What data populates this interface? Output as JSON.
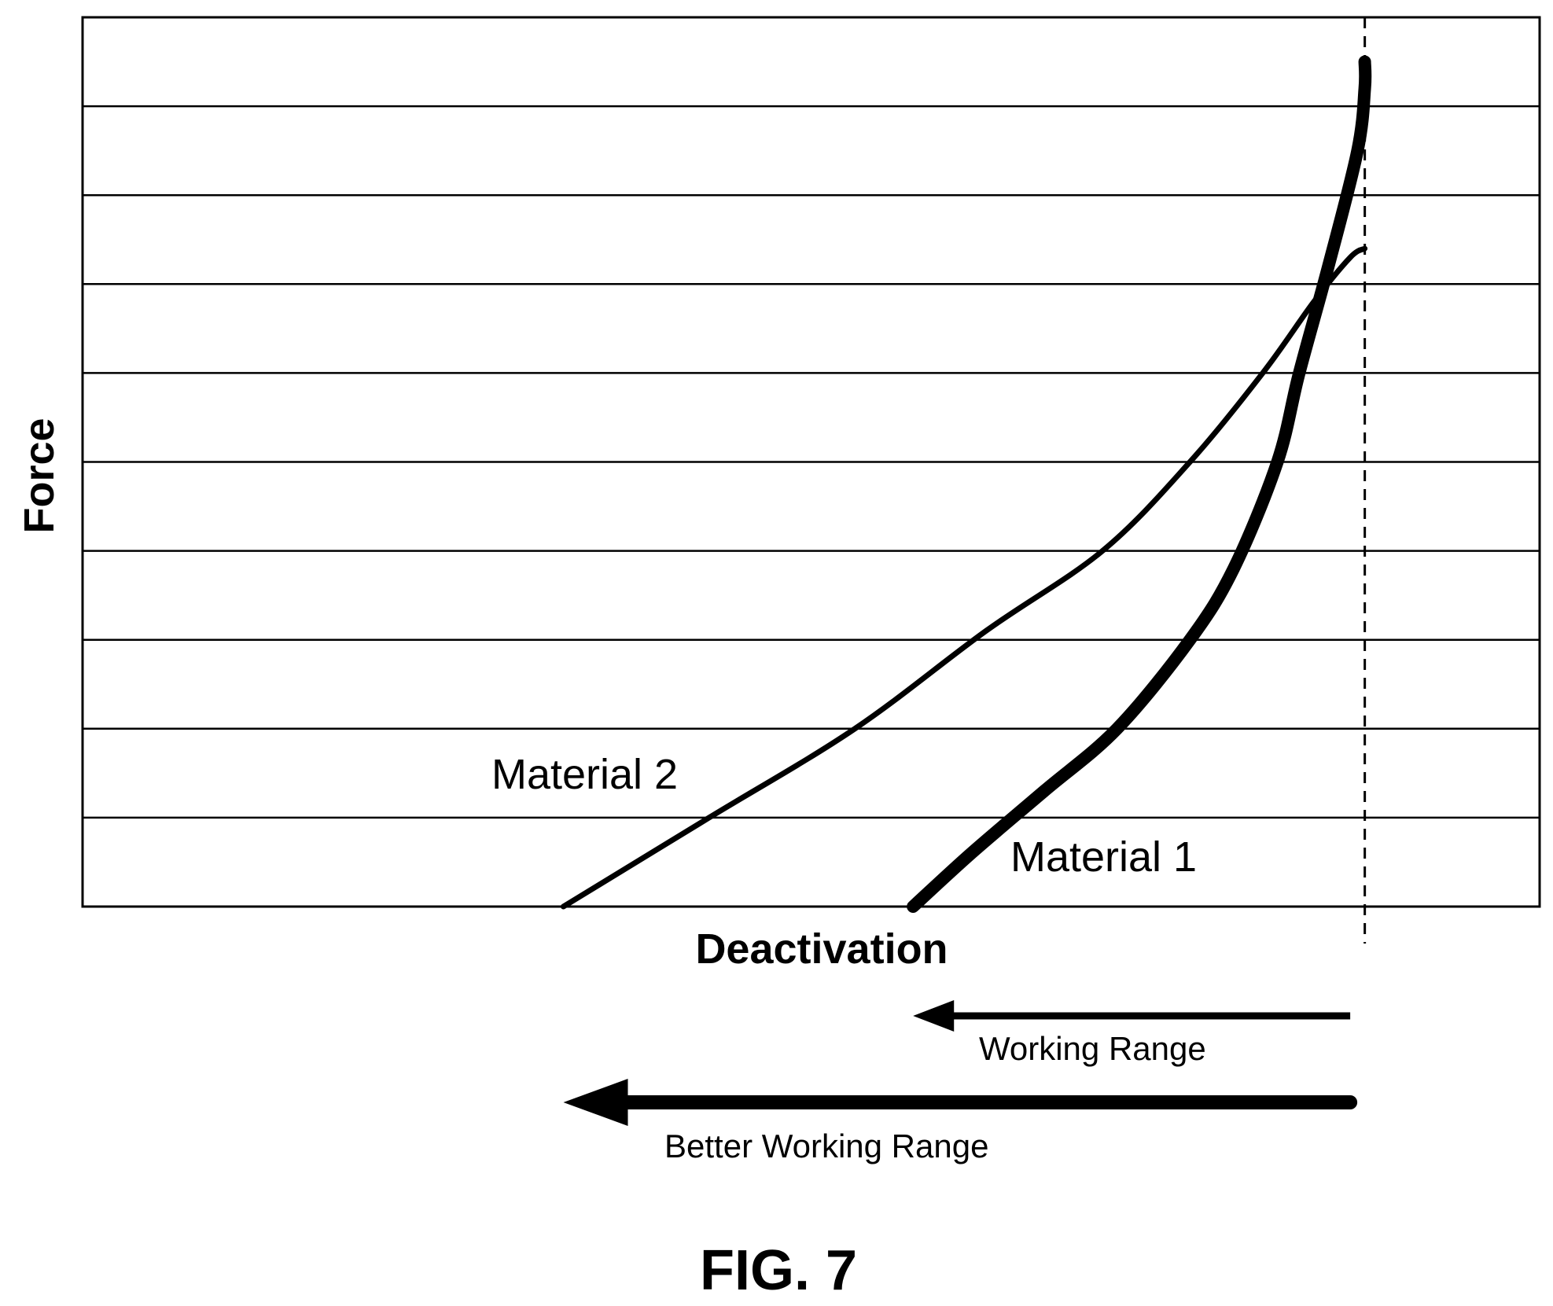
{
  "chart_data": {
    "type": "line",
    "title": "",
    "xlabel": "Deactivation",
    "ylabel": "Force",
    "xlim": [
      0,
      100
    ],
    "ylim": [
      0,
      100
    ],
    "grid": true,
    "grid_y_lines": 10,
    "series": [
      {
        "name": "Material 1",
        "weight": "thick",
        "points": [
          [
            57,
            0
          ],
          [
            61,
            6
          ],
          [
            66,
            13
          ],
          [
            71,
            20
          ],
          [
            76,
            30
          ],
          [
            79,
            38
          ],
          [
            82,
            50
          ],
          [
            83.5,
            60
          ],
          [
            85.5,
            72
          ],
          [
            87.5,
            85
          ],
          [
            88,
            92
          ],
          [
            88,
            95
          ]
        ]
      },
      {
        "name": "Material 2",
        "weight": "thin",
        "points": [
          [
            33,
            0
          ],
          [
            43,
            10
          ],
          [
            53,
            20
          ],
          [
            62,
            31
          ],
          [
            70,
            40
          ],
          [
            76,
            50
          ],
          [
            81,
            60
          ],
          [
            84.5,
            68
          ],
          [
            87,
            73
          ],
          [
            88,
            74
          ]
        ]
      }
    ],
    "reference_line": {
      "x": 88,
      "style": "dashed"
    },
    "arrows": [
      {
        "label": "Working Range",
        "from_x": 87,
        "to_x": 57,
        "weight": "thin"
      },
      {
        "label": "Better Working Range",
        "from_x": 87,
        "to_x": 33,
        "weight": "thick"
      }
    ]
  },
  "figure_label": "FIG. 7"
}
